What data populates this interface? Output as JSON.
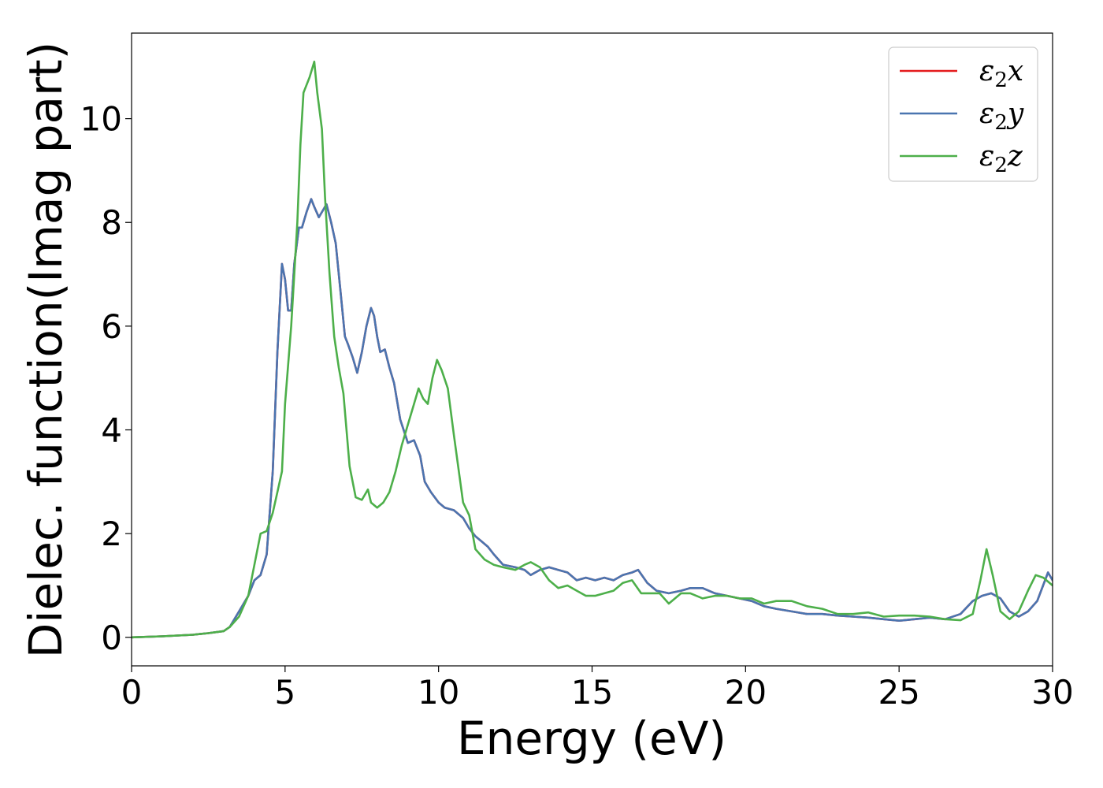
{
  "chart_data": {
    "type": "line",
    "title": "",
    "xlabel": "Energy (eV)",
    "ylabel": "Dielec. function(Imag part)",
    "xlim": [
      0,
      30
    ],
    "ylim": [
      -0.55,
      11.65
    ],
    "xticks": [
      0,
      5,
      10,
      15,
      20,
      25,
      30
    ],
    "yticks": [
      0,
      2,
      4,
      6,
      8,
      10
    ],
    "grid": false,
    "legend_position": "top-right",
    "series": [
      {
        "name": "ε2x",
        "label_base": "ε",
        "label_sub": "2",
        "label_var": "x",
        "color": "#e41a1c",
        "x": [
          0,
          1,
          2,
          2.5,
          3,
          3.2,
          3.5,
          3.8,
          4.0,
          4.2,
          4.4,
          4.6,
          4.75,
          4.9,
          5.0,
          5.1,
          5.2,
          5.3,
          5.45,
          5.55,
          5.7,
          5.85,
          5.95,
          6.1,
          6.2,
          6.35,
          6.5,
          6.65,
          6.8,
          6.95,
          7.05,
          7.2,
          7.35,
          7.5,
          7.65,
          7.8,
          7.9,
          8.0,
          8.1,
          8.25,
          8.4,
          8.55,
          8.75,
          9.0,
          9.2,
          9.4,
          9.55,
          9.75,
          10.0,
          10.2,
          10.5,
          10.8,
          11.0,
          11.2,
          11.4,
          11.6,
          11.8,
          12.1,
          12.5,
          12.8,
          13.0,
          13.3,
          13.6,
          13.9,
          14.2,
          14.5,
          14.8,
          15.1,
          15.4,
          15.7,
          16.0,
          16.3,
          16.5,
          16.8,
          17.1,
          17.5,
          17.9,
          18.2,
          18.6,
          19.0,
          19.4,
          19.8,
          20.2,
          20.6,
          21.0,
          21.5,
          22.0,
          22.5,
          23.0,
          23.5,
          24.0,
          24.5,
          25.0,
          25.5,
          26.0,
          26.5,
          27.0,
          27.4,
          27.7,
          28.0,
          28.3,
          28.6,
          28.9,
          29.2,
          29.5,
          29.85,
          30
        ],
        "y": [
          0,
          0.02,
          0.05,
          0.08,
          0.12,
          0.2,
          0.5,
          0.8,
          1.1,
          1.2,
          1.6,
          3.2,
          5.5,
          7.2,
          6.9,
          6.3,
          6.3,
          7.2,
          7.9,
          7.9,
          8.2,
          8.45,
          8.3,
          8.1,
          8.2,
          8.35,
          8.0,
          7.6,
          6.7,
          5.8,
          5.65,
          5.4,
          5.1,
          5.5,
          6.0,
          6.35,
          6.2,
          5.8,
          5.5,
          5.55,
          5.2,
          4.9,
          4.2,
          3.75,
          3.8,
          3.5,
          3.0,
          2.8,
          2.6,
          2.5,
          2.45,
          2.3,
          2.1,
          1.95,
          1.85,
          1.75,
          1.6,
          1.4,
          1.35,
          1.3,
          1.2,
          1.3,
          1.35,
          1.3,
          1.25,
          1.1,
          1.15,
          1.1,
          1.15,
          1.1,
          1.2,
          1.25,
          1.3,
          1.05,
          0.9,
          0.85,
          0.9,
          0.95,
          0.95,
          0.85,
          0.8,
          0.75,
          0.7,
          0.6,
          0.55,
          0.5,
          0.45,
          0.45,
          0.42,
          0.4,
          0.38,
          0.35,
          0.32,
          0.35,
          0.38,
          0.35,
          0.45,
          0.7,
          0.8,
          0.85,
          0.75,
          0.5,
          0.4,
          0.5,
          0.7,
          1.25,
          1.1
        ]
      },
      {
        "name": "ε2y",
        "label_base": "ε",
        "label_sub": "2",
        "label_var": "y",
        "color": "#4a75b0",
        "x": [
          0,
          1,
          2,
          2.5,
          3,
          3.2,
          3.5,
          3.8,
          4.0,
          4.2,
          4.4,
          4.6,
          4.75,
          4.9,
          5.0,
          5.1,
          5.2,
          5.3,
          5.45,
          5.55,
          5.7,
          5.85,
          5.95,
          6.1,
          6.2,
          6.35,
          6.5,
          6.65,
          6.8,
          6.95,
          7.05,
          7.2,
          7.35,
          7.5,
          7.65,
          7.8,
          7.9,
          8.0,
          8.1,
          8.25,
          8.4,
          8.55,
          8.75,
          9.0,
          9.2,
          9.4,
          9.55,
          9.75,
          10.0,
          10.2,
          10.5,
          10.8,
          11.0,
          11.2,
          11.4,
          11.6,
          11.8,
          12.1,
          12.5,
          12.8,
          13.0,
          13.3,
          13.6,
          13.9,
          14.2,
          14.5,
          14.8,
          15.1,
          15.4,
          15.7,
          16.0,
          16.3,
          16.5,
          16.8,
          17.1,
          17.5,
          17.9,
          18.2,
          18.6,
          19.0,
          19.4,
          19.8,
          20.2,
          20.6,
          21.0,
          21.5,
          22.0,
          22.5,
          23.0,
          23.5,
          24.0,
          24.5,
          25.0,
          25.5,
          26.0,
          26.5,
          27.0,
          27.4,
          27.7,
          28.0,
          28.3,
          28.6,
          28.9,
          29.2,
          29.5,
          29.85,
          30
        ],
        "y": [
          0,
          0.02,
          0.05,
          0.08,
          0.12,
          0.2,
          0.5,
          0.8,
          1.1,
          1.2,
          1.6,
          3.2,
          5.5,
          7.2,
          6.9,
          6.3,
          6.3,
          7.2,
          7.9,
          7.9,
          8.2,
          8.45,
          8.3,
          8.1,
          8.2,
          8.35,
          8.0,
          7.6,
          6.7,
          5.8,
          5.65,
          5.4,
          5.1,
          5.5,
          6.0,
          6.35,
          6.2,
          5.8,
          5.5,
          5.55,
          5.2,
          4.9,
          4.2,
          3.75,
          3.8,
          3.5,
          3.0,
          2.8,
          2.6,
          2.5,
          2.45,
          2.3,
          2.1,
          1.95,
          1.85,
          1.75,
          1.6,
          1.4,
          1.35,
          1.3,
          1.2,
          1.3,
          1.35,
          1.3,
          1.25,
          1.1,
          1.15,
          1.1,
          1.15,
          1.1,
          1.2,
          1.25,
          1.3,
          1.05,
          0.9,
          0.85,
          0.9,
          0.95,
          0.95,
          0.85,
          0.8,
          0.75,
          0.7,
          0.6,
          0.55,
          0.5,
          0.45,
          0.45,
          0.42,
          0.4,
          0.38,
          0.35,
          0.32,
          0.35,
          0.38,
          0.35,
          0.45,
          0.7,
          0.8,
          0.85,
          0.75,
          0.5,
          0.4,
          0.5,
          0.7,
          1.25,
          1.1
        ]
      },
      {
        "name": "ε2z",
        "label_base": "ε",
        "label_sub": "2",
        "label_var": "z",
        "color": "#4daf4a",
        "x": [
          0,
          1,
          2,
          2.5,
          3,
          3.2,
          3.5,
          3.8,
          4.0,
          4.2,
          4.4,
          4.6,
          4.75,
          4.9,
          5.0,
          5.2,
          5.4,
          5.5,
          5.6,
          5.8,
          5.95,
          6.05,
          6.2,
          6.3,
          6.45,
          6.6,
          6.75,
          6.9,
          7.0,
          7.1,
          7.3,
          7.5,
          7.7,
          7.8,
          8.0,
          8.2,
          8.4,
          8.6,
          8.8,
          9.0,
          9.2,
          9.35,
          9.5,
          9.65,
          9.8,
          9.95,
          10.1,
          10.3,
          10.5,
          10.8,
          11.0,
          11.2,
          11.5,
          11.8,
          12.1,
          12.5,
          12.8,
          13.0,
          13.3,
          13.6,
          13.9,
          14.2,
          14.5,
          14.8,
          15.1,
          15.4,
          15.7,
          16.0,
          16.3,
          16.6,
          16.9,
          17.2,
          17.5,
          17.9,
          18.2,
          18.6,
          19.0,
          19.4,
          19.8,
          20.2,
          20.6,
          21.0,
          21.5,
          22.0,
          22.5,
          23.0,
          23.5,
          24.0,
          24.5,
          25.0,
          25.5,
          26.0,
          26.5,
          27.0,
          27.4,
          27.65,
          27.85,
          28.05,
          28.3,
          28.6,
          28.9,
          29.2,
          29.45,
          29.7,
          30
        ],
        "y": [
          0,
          0.02,
          0.05,
          0.08,
          0.12,
          0.2,
          0.4,
          0.8,
          1.4,
          2.0,
          2.05,
          2.4,
          2.8,
          3.2,
          4.5,
          6.0,
          8.0,
          9.5,
          10.5,
          10.8,
          11.1,
          10.5,
          9.8,
          8.5,
          7.0,
          5.8,
          5.2,
          4.7,
          4.0,
          3.3,
          2.7,
          2.65,
          2.85,
          2.6,
          2.5,
          2.6,
          2.8,
          3.2,
          3.7,
          4.1,
          4.5,
          4.8,
          4.6,
          4.5,
          5.0,
          5.35,
          5.15,
          4.8,
          3.9,
          2.6,
          2.35,
          1.7,
          1.5,
          1.4,
          1.35,
          1.3,
          1.4,
          1.45,
          1.35,
          1.1,
          0.95,
          1.0,
          0.9,
          0.8,
          0.8,
          0.85,
          0.9,
          1.05,
          1.1,
          0.85,
          0.85,
          0.85,
          0.65,
          0.85,
          0.85,
          0.75,
          0.8,
          0.8,
          0.75,
          0.75,
          0.65,
          0.7,
          0.7,
          0.6,
          0.55,
          0.45,
          0.45,
          0.48,
          0.4,
          0.42,
          0.42,
          0.4,
          0.35,
          0.33,
          0.45,
          1.1,
          1.7,
          1.2,
          0.5,
          0.35,
          0.5,
          0.9,
          1.2,
          1.15,
          1.0
        ]
      }
    ]
  }
}
